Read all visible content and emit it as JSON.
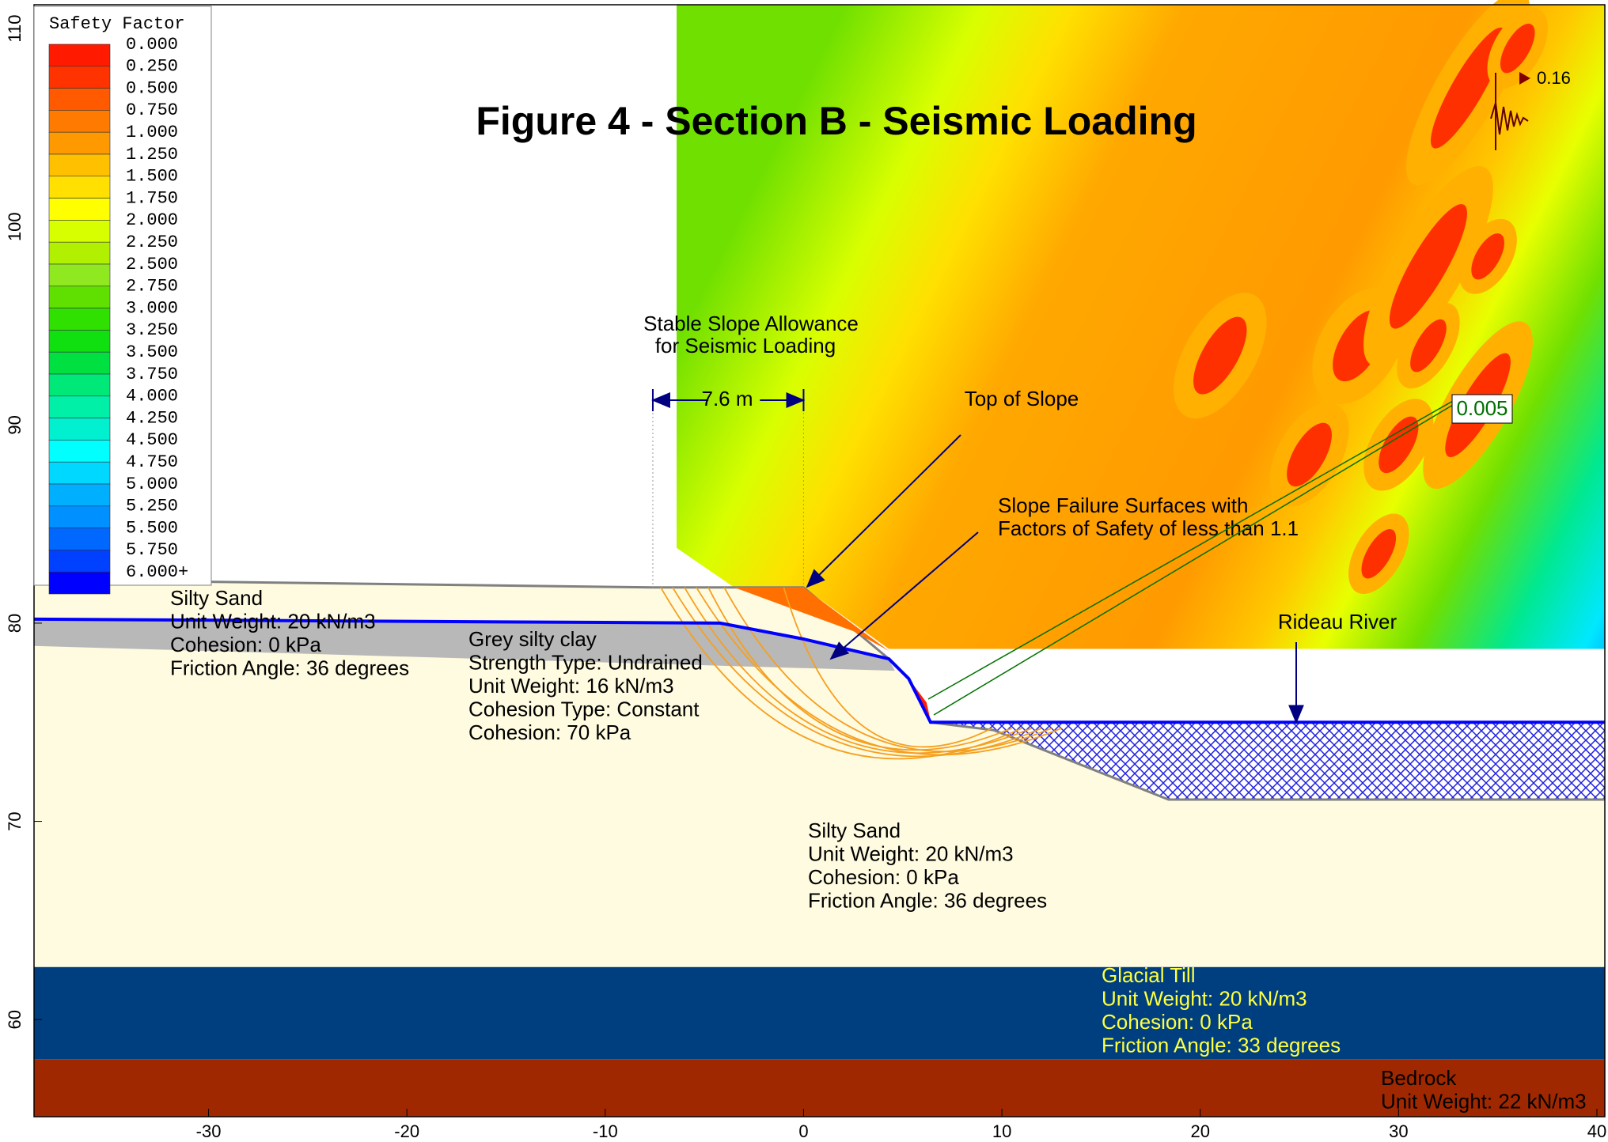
{
  "title": "Figure 4 - Section B - Seismic Loading",
  "legend": {
    "title": "Safety Factor",
    "items": [
      {
        "label": "0.000",
        "color": "#ff1a00"
      },
      {
        "label": "0.250",
        "color": "#ff3300"
      },
      {
        "label": "0.500",
        "color": "#ff5a00"
      },
      {
        "label": "0.750",
        "color": "#ff7a00"
      },
      {
        "label": "1.000",
        "color": "#ff9900"
      },
      {
        "label": "1.250",
        "color": "#ffc000"
      },
      {
        "label": "1.500",
        "color": "#ffe000"
      },
      {
        "label": "1.750",
        "color": "#ffff00"
      },
      {
        "label": "2.000",
        "color": "#d8ff00"
      },
      {
        "label": "2.250",
        "color": "#b0f000"
      },
      {
        "label": "2.500",
        "color": "#90e820"
      },
      {
        "label": "2.750",
        "color": "#60e000"
      },
      {
        "label": "3.000",
        "color": "#30e000"
      },
      {
        "label": "3.250",
        "color": "#10e010"
      },
      {
        "label": "3.500",
        "color": "#00e040"
      },
      {
        "label": "3.750",
        "color": "#00e878"
      },
      {
        "label": "4.000",
        "color": "#00f0a8"
      },
      {
        "label": "4.250",
        "color": "#00f0d0"
      },
      {
        "label": "4.500",
        "color": "#00ffff"
      },
      {
        "label": "4.750",
        "color": "#00d8ff"
      },
      {
        "label": "5.000",
        "color": "#00b0ff"
      },
      {
        "label": "5.250",
        "color": "#0090ff"
      },
      {
        "label": "5.500",
        "color": "#0068ff"
      },
      {
        "label": "5.750",
        "color": "#0040ff"
      },
      {
        "label": "6.000+",
        "color": "#0000ff"
      }
    ]
  },
  "axes": {
    "xlim": [
      -38.8,
      40.4
    ],
    "ylim": [
      55.1,
      111.2
    ],
    "xticks": [
      -30,
      -20,
      -10,
      0,
      10,
      20,
      30,
      40
    ],
    "yticks": [
      60,
      70,
      80,
      90,
      100,
      110
    ]
  },
  "annotations": {
    "allowance": [
      "Stable Slope Allowance",
      "for Seismic Loading"
    ],
    "dimension": "7.6 m",
    "top_of_slope": "Top of Slope",
    "failure_surfaces": [
      "Slope Failure Surfaces with",
      "Factors of Safety of less than 1.1"
    ],
    "minimum_factor": "0.005",
    "river": "Rideau River",
    "seismic_coefficient": "0.16"
  },
  "materials": [
    {
      "lines": [
        "Silty Sand",
        "Unit Weight: 20 kN/m3",
        "Cohesion: 0 kPa",
        "Friction Angle: 36 degrees"
      ]
    },
    {
      "lines": [
        "Grey silty clay",
        "Strength Type: Undrained",
        "Unit Weight: 16 kN/m3",
        "Cohesion Type: Constant",
        "Cohesion: 70 kPa"
      ]
    },
    {
      "lines": [
        "Silty Sand",
        "Unit Weight: 20 kN/m3",
        "Cohesion: 0 kPa",
        "Friction Angle: 36 degrees"
      ]
    },
    {
      "lines": [
        "Glacial Till",
        "Unit Weight: 20 kN/m3",
        "Cohesion: 0 kPa",
        "Friction Angle: 33 degrees"
      ]
    },
    {
      "lines": [
        "Bedrock",
        "Unit Weight: 22 kN/m3"
      ]
    }
  ]
}
